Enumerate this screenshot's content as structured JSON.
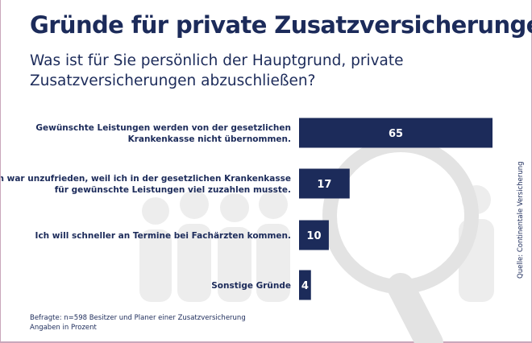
{
  "header": {
    "title": "Gründe für private Zusatzversicherungen",
    "subtitle": "Was ist für Sie persönlich der Hauptgrund, private Zusatzversicherungen abzuschließen?"
  },
  "footer": {
    "respondents": "Befragte: n=598 Besitzer und Planer einer Zusatzversicherung",
    "unit_note": "Angaben in Prozent",
    "source": "Quelle: Continentale Versicherung"
  },
  "colors": {
    "bar": "#1c2b5a",
    "text": "#1c2b5a",
    "decor": "#ebebeb"
  },
  "chart_data": {
    "type": "bar",
    "orientation": "horizontal",
    "title": "Gründe für private Zusatzversicherungen",
    "subtitle": "Was ist für Sie persönlich der Hauptgrund, private Zusatzversicherungen abzuschließen?",
    "xlim": [
      0,
      65
    ],
    "categories": [
      [
        "Gewünschte Leistungen werden von der gesetzlichen",
        "Krankenkasse nicht übernommen."
      ],
      [
        "Ich war unzufrieden, weil ich in der gesetzlichen Krankenkasse",
        "für gewünschte Leistungen viel zuzahlen musste."
      ],
      [
        "Ich will schneller an Termine bei Fachärzten kommen."
      ],
      [
        "Sonstige Gründe"
      ]
    ],
    "values": [
      65,
      17,
      10,
      4
    ],
    "data_labels": [
      "65",
      "17",
      "10",
      "4"
    ],
    "grid": false,
    "legend": "none"
  }
}
